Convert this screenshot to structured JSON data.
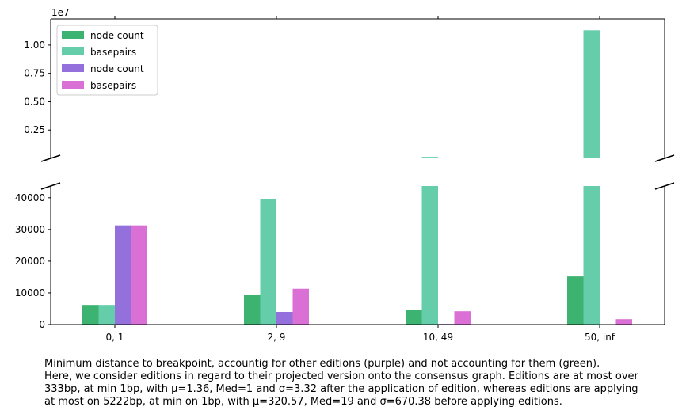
{
  "chart_data": {
    "type": "bar",
    "axis_break": true,
    "categories": [
      "0, 1",
      "2, 9",
      "10, 49",
      "50, inf"
    ],
    "series": [
      {
        "name": "node count",
        "color": "#3cb371",
        "values": [
          6200,
          9400,
          4700,
          15200
        ]
      },
      {
        "name": "basepairs",
        "color": "#66cdaa",
        "values": [
          6200,
          39600,
          130000,
          11300000
        ]
      },
      {
        "name": "node count",
        "color": "#9370db",
        "values": [
          31300,
          4000,
          200,
          50
        ]
      },
      {
        "name": "basepairs",
        "color": "#da70d6",
        "values": [
          31300,
          11300,
          4200,
          1700
        ]
      }
    ],
    "upper_axis": {
      "ylim": [
        0,
        12300000
      ],
      "ticks": [
        2500000,
        5000000,
        7500000,
        10000000
      ],
      "tick_labels": [
        "0.25",
        "0.50",
        "0.75",
        "1.00"
      ],
      "offset_label": "1e7"
    },
    "lower_axis": {
      "ylim": [
        0,
        43700
      ],
      "ticks": [
        0,
        10000,
        20000,
        30000,
        40000
      ],
      "tick_labels": [
        "0",
        "10000",
        "20000",
        "30000",
        "40000"
      ]
    },
    "legend_position": "upper-left",
    "grid": false
  },
  "caption": "Minimum distance to breakpoint, accountig for other editions (purple) and not accounting for them (green).\nHere, we consider editions in regard to their projected version onto the consensus graph. Editions are at most over\n333bp, at min 1bp, with μ=1.36, Med=1 and σ=3.32 after the application of edition, whereas editions are applying\nat most on 5222bp, at min on 1bp, with μ=320.57, Med=19 and σ=670.38 before applying editions."
}
